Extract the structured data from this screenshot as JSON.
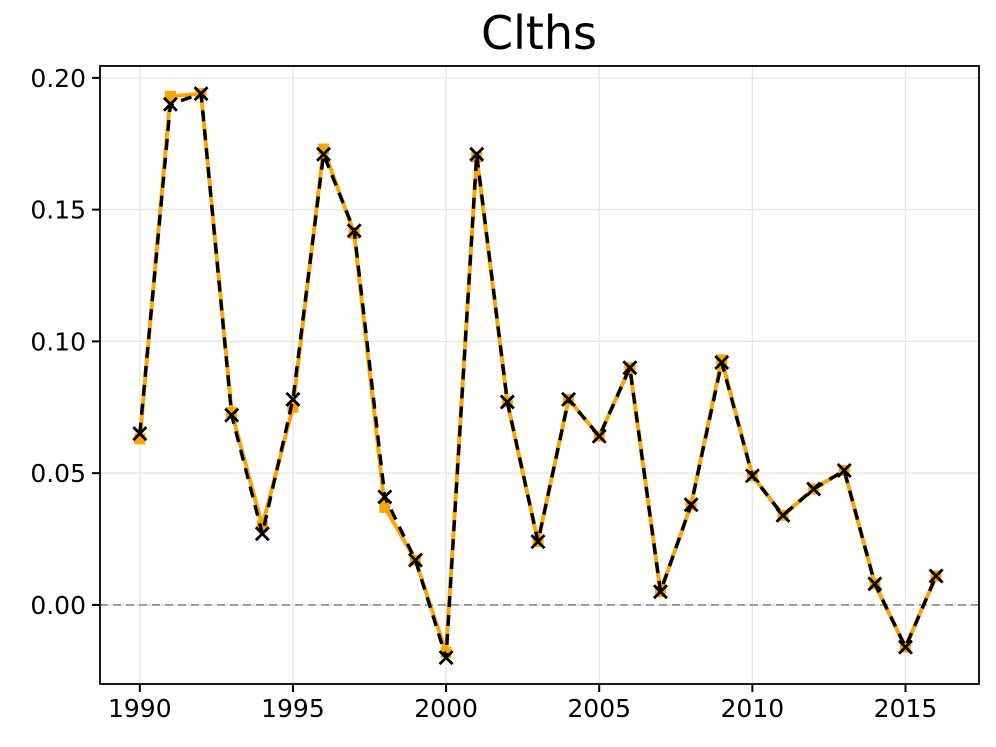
{
  "figure": {
    "title": "Clths"
  },
  "chart_data": {
    "type": "line",
    "title": "Clths",
    "xlabel": "",
    "ylabel": "",
    "x": [
      1990,
      1991,
      1992,
      1993,
      1994,
      1995,
      1996,
      1997,
      1998,
      1999,
      2000,
      2001,
      2002,
      2003,
      2004,
      2005,
      2006,
      2007,
      2008,
      2009,
      2010,
      2011,
      2012,
      2013,
      2014,
      2015,
      2016
    ],
    "series": [
      {
        "name": "orange-solid-square-series",
        "color": "#FFA500",
        "line_style": "solid",
        "marker": "square",
        "values": [
          0.063,
          0.193,
          0.194,
          0.073,
          0.03,
          0.075,
          0.173,
          0.141,
          0.037,
          0.017,
          -0.018,
          0.17,
          0.077,
          0.024,
          0.078,
          0.064,
          0.09,
          0.005,
          0.038,
          0.093,
          0.049,
          0.034,
          0.044,
          0.051,
          0.008,
          -0.016,
          0.011
        ]
      },
      {
        "name": "black-dashed-x-series",
        "color": "#000000",
        "line_style": "dashed",
        "marker": "x",
        "values": [
          0.065,
          0.19,
          0.194,
          0.072,
          0.027,
          0.078,
          0.171,
          0.142,
          0.041,
          0.017,
          -0.02,
          0.171,
          0.077,
          0.024,
          0.078,
          0.064,
          0.09,
          0.005,
          0.038,
          0.092,
          0.049,
          0.034,
          0.044,
          0.051,
          0.008,
          -0.016,
          0.011
        ]
      }
    ],
    "xlim": [
      1988.7,
      2017.4
    ],
    "ylim": [
      -0.03,
      0.2045
    ],
    "xticks": {
      "values": [
        1990,
        1995,
        2000,
        2005,
        2010,
        2015
      ],
      "labels": [
        "1990",
        "1995",
        "2000",
        "2005",
        "2010",
        "2015"
      ]
    },
    "yticks": {
      "values": [
        0.0,
        0.05,
        0.1,
        0.15,
        0.2
      ],
      "labels": [
        "0.00",
        "0.05",
        "0.10",
        "0.15",
        "0.20"
      ]
    },
    "grid": true,
    "legend": "none",
    "zero_line": {
      "value": 0.0,
      "style": "dashed",
      "color": "#8A8A8A"
    },
    "colors": {
      "background": "#FFFFFF",
      "grid": "#E6E6E6",
      "axes": "#000000"
    }
  }
}
